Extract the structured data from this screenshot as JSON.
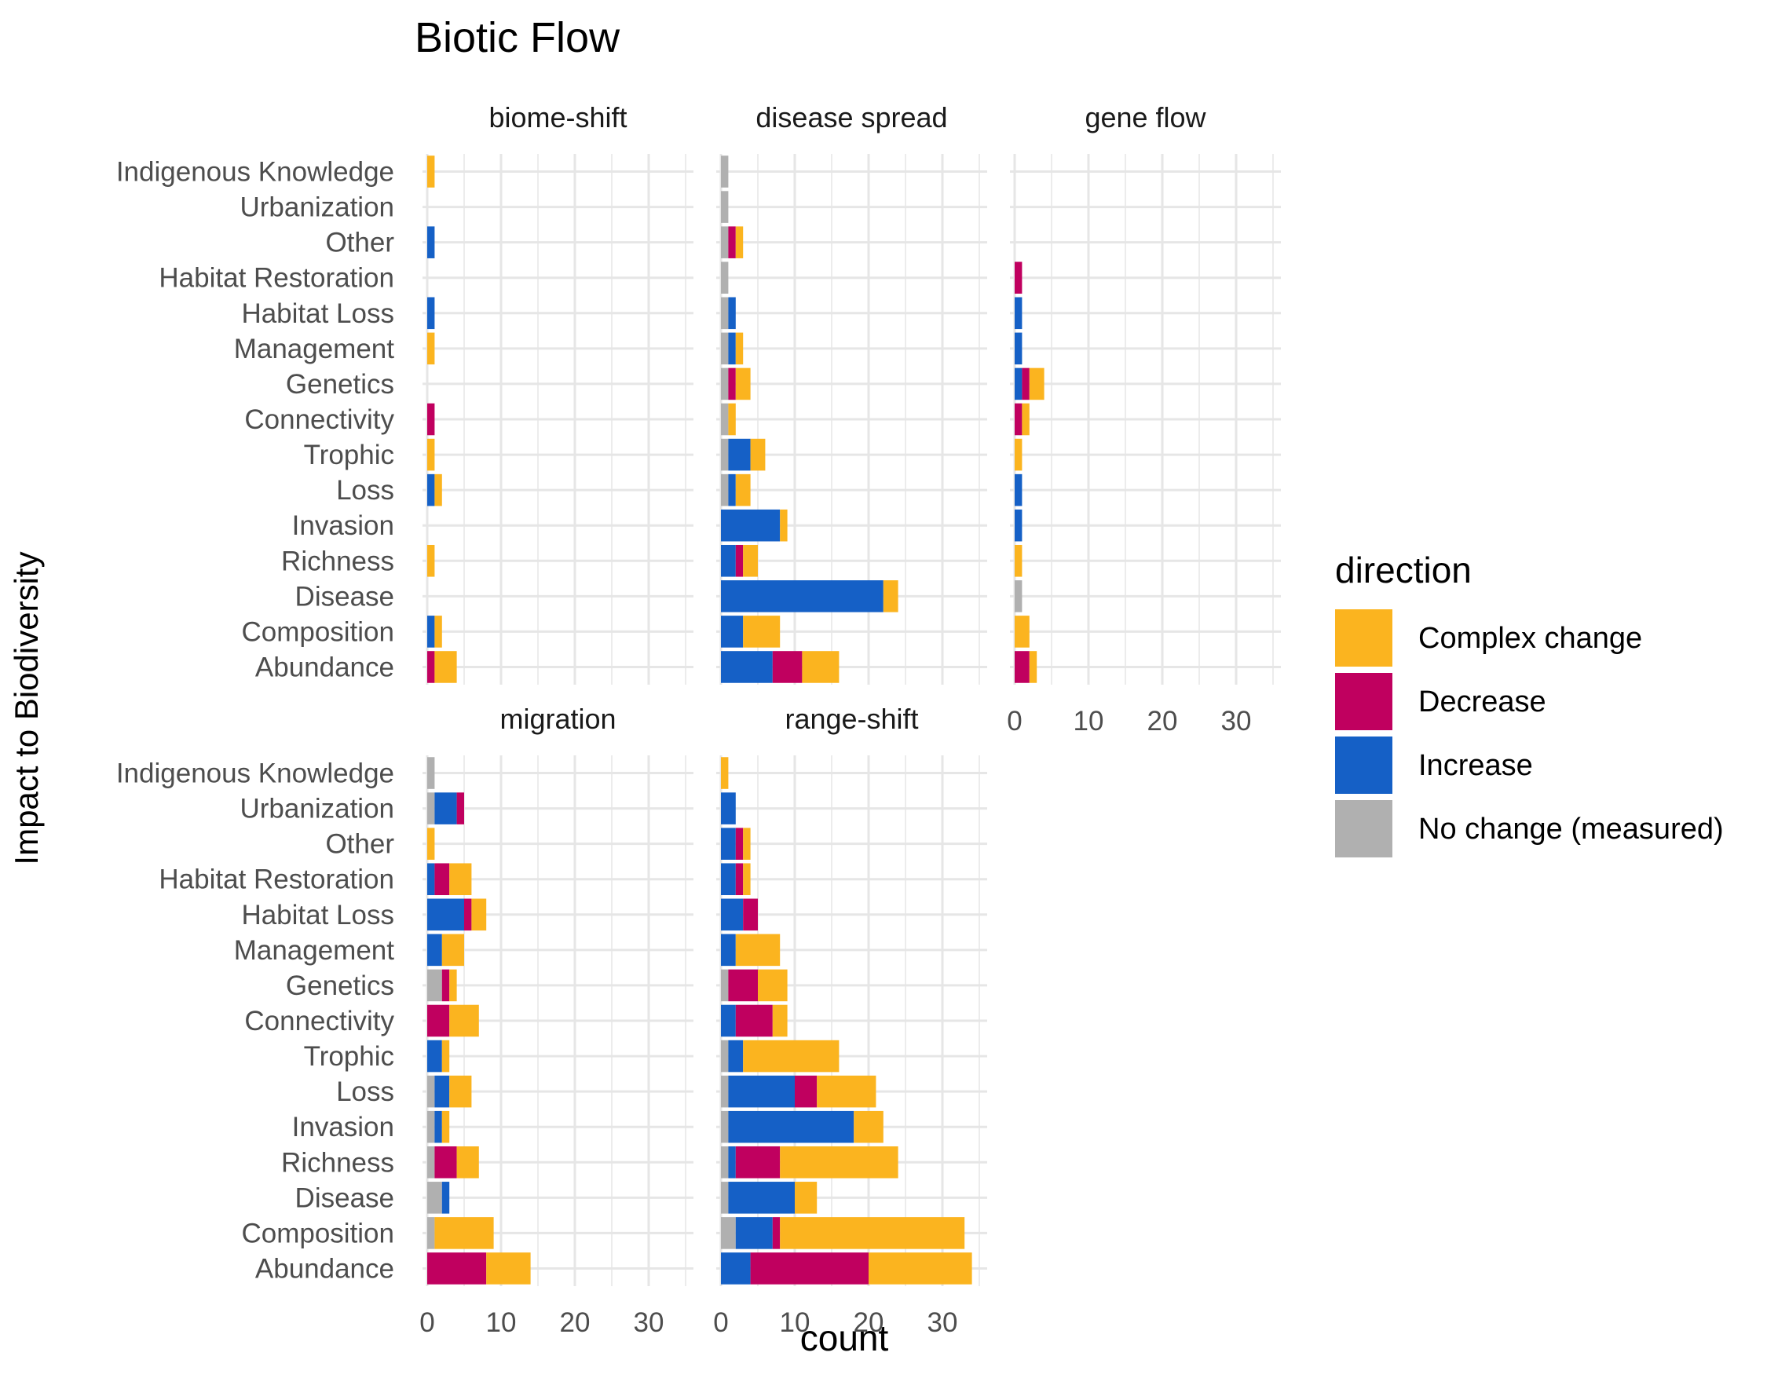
{
  "chart_data": {
    "type": "bar",
    "orientation": "horizontal",
    "stacked": true,
    "title": "Biotic Flow",
    "xlabel": "count",
    "ylabel": "Impact to Biodiversity",
    "xlim": [
      0,
      35
    ],
    "x_ticks": [
      "0",
      "10",
      "20",
      "30"
    ],
    "grid": true,
    "legend": {
      "title": "direction",
      "placement": "right",
      "items": [
        {
          "name": "Complex change",
          "color": "#FBB41F"
        },
        {
          "name": "Decrease",
          "color": "#C0005F"
        },
        {
          "name": "Increase",
          "color": "#1560C6"
        },
        {
          "name": "No change (measured)",
          "color": "#B0B0B0"
        }
      ]
    },
    "categories": [
      "Indigenous Knowledge",
      "Urbanization",
      "Other",
      "Habitat Restoration",
      "Habitat Loss",
      "Management",
      "Genetics",
      "Connectivity",
      "Trophic",
      "Loss",
      "Invasion",
      "Richness",
      "Disease",
      "Composition",
      "Abundance"
    ],
    "stack_order": [
      "No change (measured)",
      "Increase",
      "Decrease",
      "Complex change"
    ],
    "panels": [
      {
        "name": "biome-shift",
        "values": {
          "No change (measured)": [
            0,
            0,
            0,
            0,
            0,
            0,
            0,
            0,
            0,
            0,
            0,
            0,
            0,
            0,
            0
          ],
          "Increase": [
            0,
            0,
            1,
            0,
            1,
            0,
            0,
            0,
            0,
            1,
            0,
            0,
            0,
            1,
            0
          ],
          "Decrease": [
            0,
            0,
            0,
            0,
            0,
            0,
            0,
            1,
            0,
            0,
            0,
            0,
            0,
            0,
            1
          ],
          "Complex change": [
            1,
            0,
            0,
            0,
            0,
            1,
            0,
            0,
            1,
            1,
            0,
            1,
            0,
            1,
            3
          ]
        }
      },
      {
        "name": "disease spread",
        "values": {
          "No change (measured)": [
            1,
            1,
            1,
            1,
            1,
            1,
            1,
            1,
            1,
            1,
            0,
            0,
            0,
            0,
            0
          ],
          "Increase": [
            0,
            0,
            0,
            0,
            1,
            1,
            0,
            0,
            3,
            1,
            8,
            2,
            22,
            3,
            7
          ],
          "Decrease": [
            0,
            0,
            1,
            0,
            0,
            0,
            1,
            0,
            0,
            0,
            0,
            1,
            0,
            0,
            4
          ],
          "Complex change": [
            0,
            0,
            1,
            0,
            0,
            1,
            2,
            1,
            2,
            2,
            1,
            2,
            2,
            5,
            5
          ]
        }
      },
      {
        "name": "gene flow",
        "values": {
          "No change (measured)": [
            0,
            0,
            0,
            0,
            0,
            0,
            0,
            0,
            0,
            0,
            0,
            0,
            1,
            0,
            0
          ],
          "Increase": [
            0,
            0,
            0,
            0,
            1,
            1,
            1,
            0,
            0,
            1,
            1,
            0,
            0,
            0,
            0
          ],
          "Decrease": [
            0,
            0,
            0,
            1,
            0,
            0,
            1,
            1,
            0,
            0,
            0,
            0,
            0,
            0,
            2
          ],
          "Complex change": [
            0,
            0,
            0,
            0,
            0,
            0,
            2,
            1,
            1,
            0,
            0,
            1,
            0,
            2,
            1
          ]
        }
      },
      {
        "name": "migration",
        "values": {
          "No change (measured)": [
            1,
            1,
            0,
            0,
            0,
            0,
            2,
            0,
            0,
            1,
            1,
            1,
            2,
            1,
            0
          ],
          "Increase": [
            0,
            3,
            0,
            1,
            5,
            2,
            0,
            0,
            2,
            2,
            1,
            0,
            1,
            0,
            0
          ],
          "Decrease": [
            0,
            1,
            0,
            2,
            1,
            0,
            1,
            3,
            0,
            0,
            0,
            3,
            0,
            0,
            8
          ],
          "Complex change": [
            0,
            0,
            1,
            3,
            2,
            3,
            1,
            4,
            1,
            3,
            1,
            3,
            0,
            8,
            6
          ]
        }
      },
      {
        "name": "range-shift",
        "values": {
          "No change (measured)": [
            0,
            0,
            0,
            0,
            0,
            0,
            1,
            0,
            1,
            1,
            1,
            1,
            1,
            2,
            0
          ],
          "Increase": [
            0,
            2,
            2,
            2,
            3,
            2,
            0,
            2,
            2,
            9,
            17,
            1,
            9,
            5,
            4
          ],
          "Decrease": [
            0,
            0,
            1,
            1,
            2,
            0,
            4,
            5,
            0,
            3,
            0,
            6,
            0,
            1,
            16
          ],
          "Complex change": [
            1,
            0,
            1,
            1,
            0,
            6,
            4,
            2,
            13,
            8,
            4,
            16,
            3,
            25,
            14
          ]
        }
      }
    ]
  }
}
